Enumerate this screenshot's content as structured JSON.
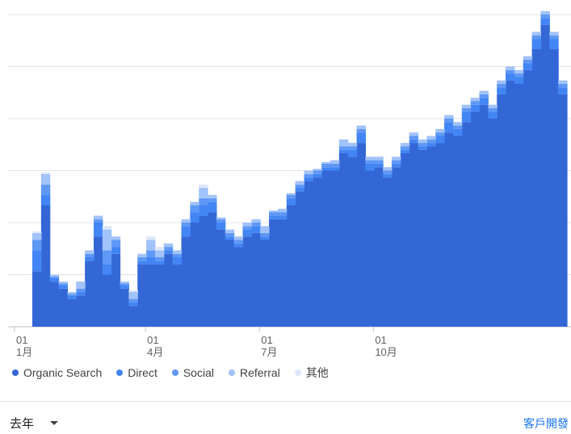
{
  "chart_data": {
    "type": "area",
    "stacked": true,
    "step": true,
    "title": "",
    "xlabel": "",
    "ylabel": "",
    "x_tick_labels": [
      {
        "day": "01",
        "month": "1月",
        "week": 0
      },
      {
        "day": "01",
        "month": "4月",
        "week": 13
      },
      {
        "day": "01",
        "month": "7月",
        "week": 26
      },
      {
        "day": "01",
        "month": "10月",
        "week": 39
      }
    ],
    "y_gridlines": 6,
    "y_tick_labels": [],
    "grid": true,
    "legend_position": "bottom-left",
    "series": [
      {
        "name": "Organic Search",
        "color": "#3367d6",
        "values": [
          1.6,
          3.5,
          1.3,
          1.1,
          0.8,
          0.9,
          1.9,
          2.6,
          1.5,
          2.1,
          1.1,
          0.6,
          1.8,
          1.8,
          1.8,
          2.1,
          1.8,
          2.6,
          3.0,
          3.2,
          3.3,
          2.8,
          2.5,
          2.3,
          2.6,
          2.7,
          2.5,
          3.1,
          3.1,
          3.5,
          3.9,
          4.2,
          4.3,
          4.5,
          4.5,
          5.0,
          4.9,
          5.3,
          4.5,
          4.6,
          4.3,
          4.6,
          5.0,
          5.3,
          5.1,
          5.2,
          5.3,
          5.6,
          5.5,
          5.9,
          6.2,
          6.4,
          6.0,
          6.7,
          7.1,
          7.0,
          7.4,
          8.0,
          8.7,
          8.0,
          6.7
        ]
      },
      {
        "name": "Direct",
        "color": "#4285f4",
        "values": [
          0.6,
          0.3,
          0.1,
          0.1,
          0.1,
          0.1,
          0.1,
          0.4,
          0.3,
          0.2,
          0.1,
          0.1,
          0.1,
          0.2,
          0.1,
          0.1,
          0.2,
          0.3,
          0.3,
          0.3,
          0.3,
          0.2,
          0.1,
          0.1,
          0.2,
          0.2,
          0.1,
          0.1,
          0.1,
          0.2,
          0.1,
          0.1,
          0.1,
          0.1,
          0.1,
          0.1,
          0.2,
          0.3,
          0.2,
          0.1,
          0.1,
          0.1,
          0.1,
          0.1,
          0.1,
          0.1,
          0.2,
          0.3,
          0.2,
          0.3,
          0.2,
          0.2,
          0.2,
          0.2,
          0.2,
          0.2,
          0.2,
          0.3,
          0.2,
          0.3,
          0.2
        ]
      },
      {
        "name": "Social",
        "color": "#5e97f6",
        "values": [
          0.3,
          0.3,
          0.05,
          0.05,
          0.05,
          0.1,
          0.1,
          0.1,
          0.4,
          0.2,
          0.05,
          0.1,
          0.1,
          0.2,
          0.1,
          0.1,
          0.1,
          0.1,
          0.2,
          0.2,
          0.1,
          0.1,
          0.1,
          0.1,
          0.1,
          0.1,
          0.1,
          0.1,
          0.1,
          0.1,
          0.1,
          0.1,
          0.1,
          0.1,
          0.1,
          0.1,
          0.1,
          0.1,
          0.1,
          0.1,
          0.1,
          0.1,
          0.1,
          0.1,
          0.1,
          0.1,
          0.1,
          0.1,
          0.1,
          0.1,
          0.1,
          0.1,
          0.1,
          0.1,
          0.1,
          0.1,
          0.1,
          0.1,
          0.1,
          0.1,
          0.1
        ]
      },
      {
        "name": "Referral",
        "color": "#a1c2fa",
        "values": [
          0.2,
          0.3,
          0.05,
          0.05,
          0.05,
          0.2,
          0.1,
          0.1,
          0.6,
          0.1,
          0.05,
          0.2,
          0.1,
          0.3,
          0.2,
          0.1,
          0.1,
          0.1,
          0.1,
          0.3,
          0.1,
          0.05,
          0.1,
          0.1,
          0.1,
          0.1,
          0.2,
          0.05,
          0.1,
          0.05,
          0.1,
          0.1,
          0.05,
          0.05,
          0.1,
          0.2,
          0.1,
          0.1,
          0.1,
          0.1,
          0.1,
          0.1,
          0.1,
          0.1,
          0.1,
          0.1,
          0.1,
          0.1,
          0.1,
          0.1,
          0.1,
          0.1,
          0.1,
          0.1,
          0.1,
          0.1,
          0.1,
          0.1,
          0.1,
          0.1,
          0.1
        ]
      },
      {
        "name": "其他",
        "color": "#dce7fc",
        "values": [
          0.05,
          0.05,
          0.0,
          0.0,
          0.0,
          0.0,
          0.0,
          0.0,
          0.1,
          0.0,
          0.0,
          0.05,
          0.0,
          0.1,
          0.1,
          0.0,
          0.0,
          0.0,
          0.0,
          0.1,
          0.0,
          0.0,
          0.0,
          0.0,
          0.0,
          0.0,
          0.0,
          0.0,
          0.0,
          0.0,
          0.0,
          0.0,
          0.0,
          0.0,
          0.0,
          0.0,
          0.0,
          0.0,
          0.0,
          0.0,
          0.0,
          0.0,
          0.0,
          0.0,
          0.0,
          0.0,
          0.0,
          0.0,
          0.0,
          0.0,
          0.0,
          0.0,
          0.0,
          0.0,
          0.0,
          0.0,
          0.0,
          0.0,
          0.0,
          0.0,
          0.0
        ]
      }
    ]
  },
  "footer": {
    "date_range": "去年",
    "report_link": "客戶開發"
  }
}
